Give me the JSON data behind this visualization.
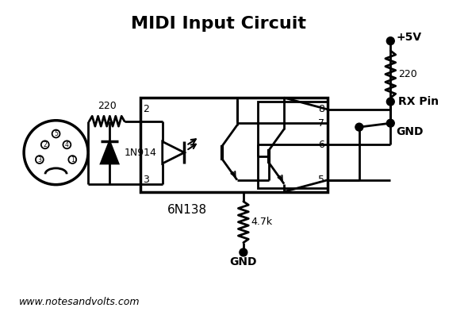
{
  "title": "MIDI Input Circuit",
  "website": "www.notesandvolts.com",
  "bg_color": "#FFFFFF",
  "line_color": "#000000",
  "title_fontsize": 16,
  "label_fontsize": 10,
  "small_fontsize": 8,
  "lw": 2.0,
  "fig_width": 5.9,
  "fig_height": 4.12,
  "dpi": 100,
  "xlim": [
    0,
    11.8
  ],
  "ylim": [
    0,
    8.24
  ]
}
